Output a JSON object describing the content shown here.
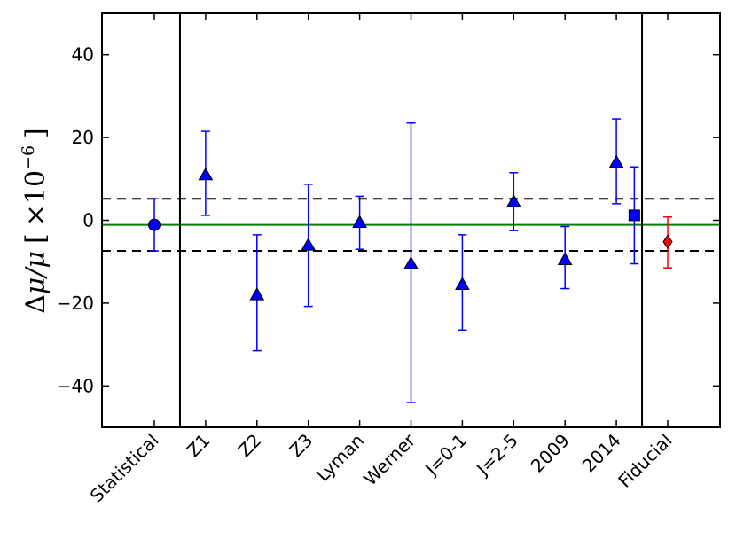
{
  "chart_data": {
    "type": "scatter",
    "ylabel_parts": {
      "delta": "Δ",
      "mu_ratio": "μ/μ",
      "bracket_open": "[",
      "times": "×10",
      "exponent": "−6",
      "bracket_close": "]"
    },
    "categories": [
      "Statistical",
      "Z1",
      "Z2",
      "Z3",
      "Lyman",
      "Werner",
      "J=0-1",
      "J=2-5",
      "2009",
      "2014",
      "Fiducial"
    ],
    "ylim": [
      -50,
      50
    ],
    "yticks": [
      -40,
      -20,
      0,
      20,
      40
    ],
    "ytick_labels": [
      "−40",
      "−20",
      "0",
      "20",
      "40"
    ],
    "reference_lines": {
      "mean": -1.1,
      "mean_color": "#008000",
      "band": [
        5.2,
        -7.4
      ],
      "band_style": "dashed"
    },
    "separators_after_category": [
      0,
      9
    ],
    "points": [
      {
        "category": "Statistical",
        "y": -1.1,
        "err_low": -7.4,
        "err_high": 5.2,
        "marker": "circle",
        "color": "#0000ff",
        "error_color": "#0000ff"
      },
      {
        "category": "Z1",
        "y": 11.0,
        "err_low": 1.2,
        "err_high": 21.5,
        "marker": "triangle",
        "color": "#0000ff",
        "error_color": "#0000ff"
      },
      {
        "category": "Z2",
        "y": -18.0,
        "err_low": -31.5,
        "err_high": -3.5,
        "marker": "triangle",
        "color": "#0000ff",
        "error_color": "#0000ff"
      },
      {
        "category": "Z3",
        "y": -6.0,
        "err_low": -20.8,
        "err_high": 8.7,
        "marker": "triangle",
        "color": "#0000ff",
        "error_color": "#0000ff"
      },
      {
        "category": "Lyman",
        "y": -0.5,
        "err_low": -7.0,
        "err_high": 5.8,
        "marker": "triangle",
        "color": "#0000ff",
        "error_color": "#0000ff"
      },
      {
        "category": "Werner",
        "y": -10.5,
        "err_low": -44.0,
        "err_high": 23.5,
        "marker": "triangle",
        "color": "#0000ff",
        "error_color": "#0000ff"
      },
      {
        "category": "J=0-1",
        "y": -15.5,
        "err_low": -26.5,
        "err_high": -3.5,
        "marker": "triangle",
        "color": "#0000ff",
        "error_color": "#0000ff"
      },
      {
        "category": "J=2-5",
        "y": 4.5,
        "err_low": -2.5,
        "err_high": 11.5,
        "marker": "triangle",
        "color": "#0000ff",
        "error_color": "#0000ff"
      },
      {
        "category": "2009",
        "y": -9.5,
        "err_low": -16.5,
        "err_high": -1.5,
        "marker": "triangle",
        "color": "#0000ff",
        "error_color": "#0000ff"
      },
      {
        "category": "2014",
        "y": 14.0,
        "err_low": 4.0,
        "err_high": 24.5,
        "marker": "triangle",
        "color": "#0000ff",
        "error_color": "#0000ff"
      },
      {
        "category": "2014",
        "x_offset": 0.35,
        "y": 1.2,
        "err_low": -10.5,
        "err_high": 12.9,
        "marker": "square",
        "color": "#0000ff",
        "error_color": "#0000ff"
      },
      {
        "category": "Fiducial",
        "y": -5.2,
        "err_low": -11.5,
        "err_high": 0.8,
        "marker": "diamond",
        "color": "#ff0000",
        "error_color": "#ff0000"
      }
    ],
    "grid": false,
    "legend": "none"
  }
}
